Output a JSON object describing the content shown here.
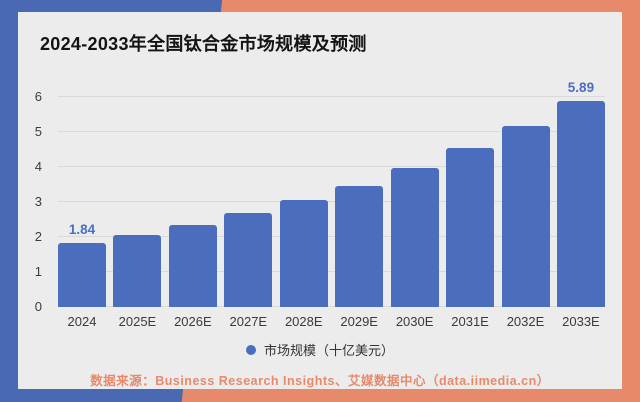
{
  "title": "2024-2033年全国钛合金市场规模及预测",
  "colors": {
    "background_left": "#4a69b3",
    "background_right": "#e78a6b",
    "card": "#ececec",
    "bar": "#4a6dbd",
    "bar_label": "#4a6fc4",
    "source_text": "#e78a6b"
  },
  "chart_data": {
    "type": "bar",
    "title": "2024-2033年全国钛合金市场规模及预测",
    "categories": [
      "2024",
      "2025E",
      "2026E",
      "2027E",
      "2028E",
      "2029E",
      "2030E",
      "2031E",
      "2032E",
      "2033E"
    ],
    "values": [
      1.84,
      2.05,
      2.35,
      2.68,
      3.07,
      3.46,
      3.98,
      4.53,
      5.16,
      5.89
    ],
    "labeled_indices": [
      0,
      9
    ],
    "data_labels": {
      "first": "1.84",
      "last": "5.89"
    },
    "xlabel": "",
    "ylabel": "",
    "ylim": [
      0,
      6
    ],
    "yticks": [
      0,
      1,
      2,
      3,
      4,
      5,
      6
    ],
    "grid": true,
    "legend_position": "bottom"
  },
  "legend": {
    "label": "市场规模（十亿美元）"
  },
  "source": {
    "text": "数据来源：Business Research Insights、艾媒数据中心（data.iimedia.cn）"
  }
}
